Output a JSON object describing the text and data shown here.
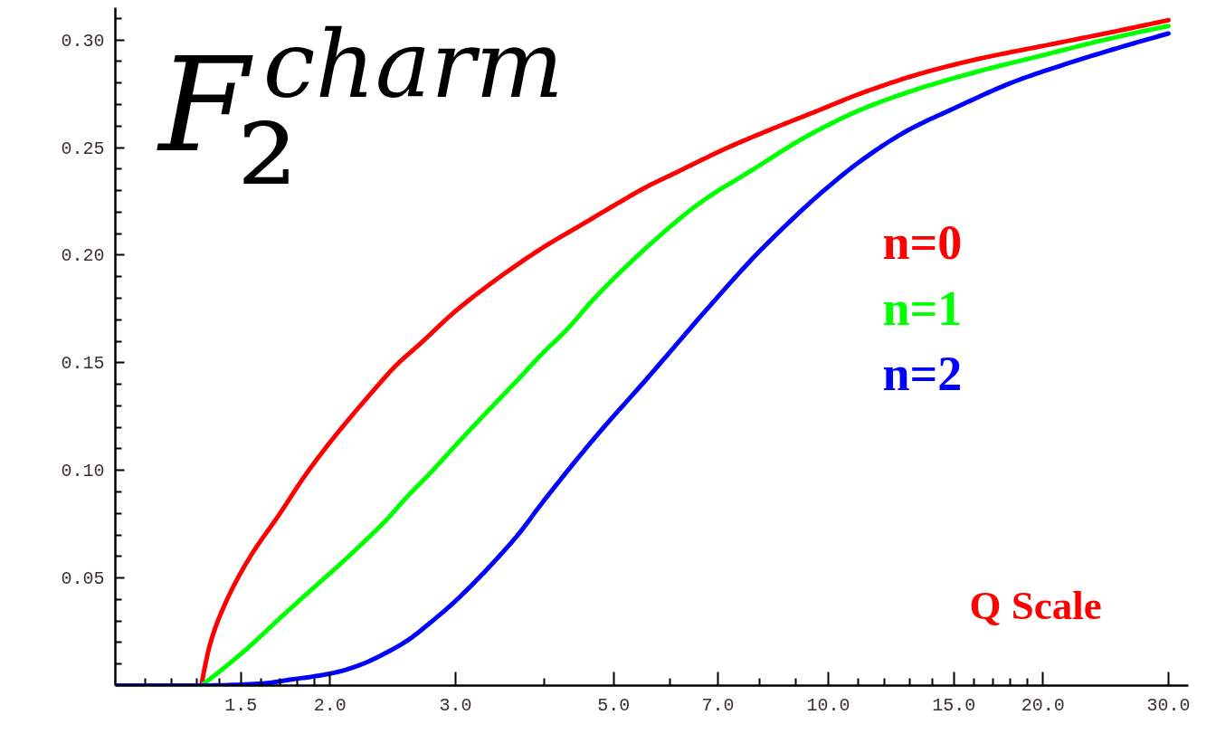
{
  "chart_data": {
    "type": "line",
    "title": "F₂$^{charm}$",
    "annotations": [
      "Q Scale"
    ],
    "log": "x",
    "legend": "right",
    "xlim": [
      1.0,
      32
    ],
    "ylim": [
      0,
      0.315
    ],
    "xticks": [
      {
        "value": 1.1,
        "label": null
      },
      {
        "value": 1.2,
        "label": null
      },
      {
        "value": 1.3,
        "label": null
      },
      {
        "value": 1.4,
        "label": null
      },
      1.5,
      {
        "value": 1.6,
        "label": null
      },
      {
        "value": 1.7,
        "label": null
      },
      {
        "value": 1.8,
        "label": null
      },
      {
        "value": 1.9,
        "label": null
      },
      {
        "value": 2,
        "label": "2.0"
      },
      {
        "value": 3,
        "label": "3.0"
      },
      {
        "value": 4,
        "label": null
      },
      {
        "value": 5,
        "label": "5.0"
      },
      {
        "value": 6,
        "label": null
      },
      {
        "value": 7,
        "label": "7.0"
      },
      {
        "value": 8,
        "label": null
      },
      {
        "value": 9,
        "label": null
      },
      {
        "value": 10,
        "label": "10.0"
      },
      {
        "value": 11,
        "label": null
      },
      {
        "value": 12,
        "label": null
      },
      {
        "value": 13,
        "label": null
      },
      {
        "value": 14,
        "label": null
      },
      {
        "value": 15,
        "label": "15.0"
      },
      {
        "value": 16,
        "label": null
      },
      {
        "value": 17,
        "label": null
      },
      {
        "value": 18,
        "label": null
      },
      {
        "value": 19,
        "label": null
      },
      {
        "value": 20,
        "label": "20.0"
      },
      {
        "value": 30,
        "label": "30.0"
      }
    ],
    "yticks": [
      {
        "value": 0.01,
        "label": null
      },
      {
        "value": 0.02,
        "label": null
      },
      {
        "value": 0.03,
        "label": null
      },
      {
        "value": 0.04,
        "label": null
      },
      0.05,
      {
        "value": 0.06,
        "label": null
      },
      {
        "value": 0.07,
        "label": null
      },
      {
        "value": 0.08,
        "label": null
      },
      {
        "value": 0.09,
        "label": null
      },
      {
        "value": 0.1,
        "label": "0.10"
      },
      {
        "value": 0.11,
        "label": null
      },
      {
        "value": 0.12,
        "label": null
      },
      {
        "value": 0.13,
        "label": null
      },
      {
        "value": 0.14,
        "label": null
      },
      0.15,
      {
        "value": 0.16,
        "label": null
      },
      {
        "value": 0.17,
        "label": null
      },
      {
        "value": 0.18,
        "label": null
      },
      {
        "value": 0.19,
        "label": null
      },
      {
        "value": 0.2,
        "label": "0.20"
      },
      {
        "value": 0.21,
        "label": null
      },
      {
        "value": 0.22,
        "label": null
      },
      {
        "value": 0.23,
        "label": null
      },
      {
        "value": 0.24,
        "label": null
      },
      0.25,
      {
        "value": 0.26,
        "label": null
      },
      {
        "value": 0.27,
        "label": null
      },
      {
        "value": 0.28,
        "label": null
      },
      {
        "value": 0.29,
        "label": null
      },
      {
        "value": 0.3,
        "label": "0.30"
      },
      {
        "value": 0.31,
        "label": null
      }
    ],
    "series": [
      {
        "name": "n=0",
        "color": "#ff0000",
        "x": [
          1.0,
          1.32,
          1.36,
          1.43,
          1.54,
          1.71,
          1.84,
          2.0,
          2.3,
          2.48,
          2.68,
          3.0,
          3.5,
          4.0,
          4.5,
          5.0,
          5.58,
          6.17,
          6.62,
          7.23,
          8.46,
          9.56,
          11.18,
          13.58,
          16.5,
          20.05,
          24.36,
          30
        ],
        "values": [
          0,
          0,
          0.02,
          0.039,
          0.059,
          0.081,
          0.097,
          0.113,
          0.137,
          0.149,
          0.159,
          0.174,
          0.191,
          0.204,
          0.214,
          0.223,
          0.232,
          0.239,
          0.244,
          0.25,
          0.2595,
          0.2665,
          0.2755,
          0.2847,
          0.2917,
          0.2973,
          0.3029,
          0.3092
        ]
      },
      {
        "name": "n=1",
        "color": "#00ff00",
        "x": [
          1.0,
          1.32,
          1.43,
          1.54,
          1.71,
          1.92,
          2.06,
          2.22,
          2.4,
          2.57,
          2.76,
          2.97,
          3.21,
          3.43,
          3.69,
          3.95,
          4.3,
          4.7,
          5.58,
          6.62,
          7.86,
          9.3,
          11.18,
          13.58,
          16.5,
          20.05,
          24.36,
          30
        ],
        "values": [
          0,
          0,
          0.009,
          0.018,
          0.032,
          0.047,
          0.056,
          0.066,
          0.077,
          0.088,
          0.0985,
          0.11,
          0.122,
          0.132,
          0.143,
          0.1535,
          0.1655,
          0.18,
          0.204,
          0.2245,
          0.24,
          0.255,
          0.268,
          0.278,
          0.286,
          0.293,
          0.3,
          0.3065
        ]
      },
      {
        "name": "n=2",
        "color": "#0000ff",
        "x": [
          1.0,
          1.32,
          1.61,
          1.78,
          1.92,
          2.06,
          2.22,
          2.39,
          2.57,
          2.76,
          2.97,
          3.19,
          3.43,
          3.69,
          3.95,
          4.7,
          5.58,
          6.62,
          7.86,
          8.76,
          9.66,
          11.18,
          12.93,
          14.96,
          18.19,
          22.1,
          26.86,
          30
        ],
        "values": [
          0,
          0,
          0.001,
          0.003,
          0.0045,
          0.0065,
          0.01,
          0.015,
          0.021,
          0.029,
          0.038,
          0.048,
          0.059,
          0.071,
          0.084,
          0.115,
          0.143,
          0.1715,
          0.199,
          0.2145,
          0.2275,
          0.2445,
          0.258,
          0.268,
          0.2805,
          0.29,
          0.2985,
          0.303
        ]
      }
    ]
  }
}
